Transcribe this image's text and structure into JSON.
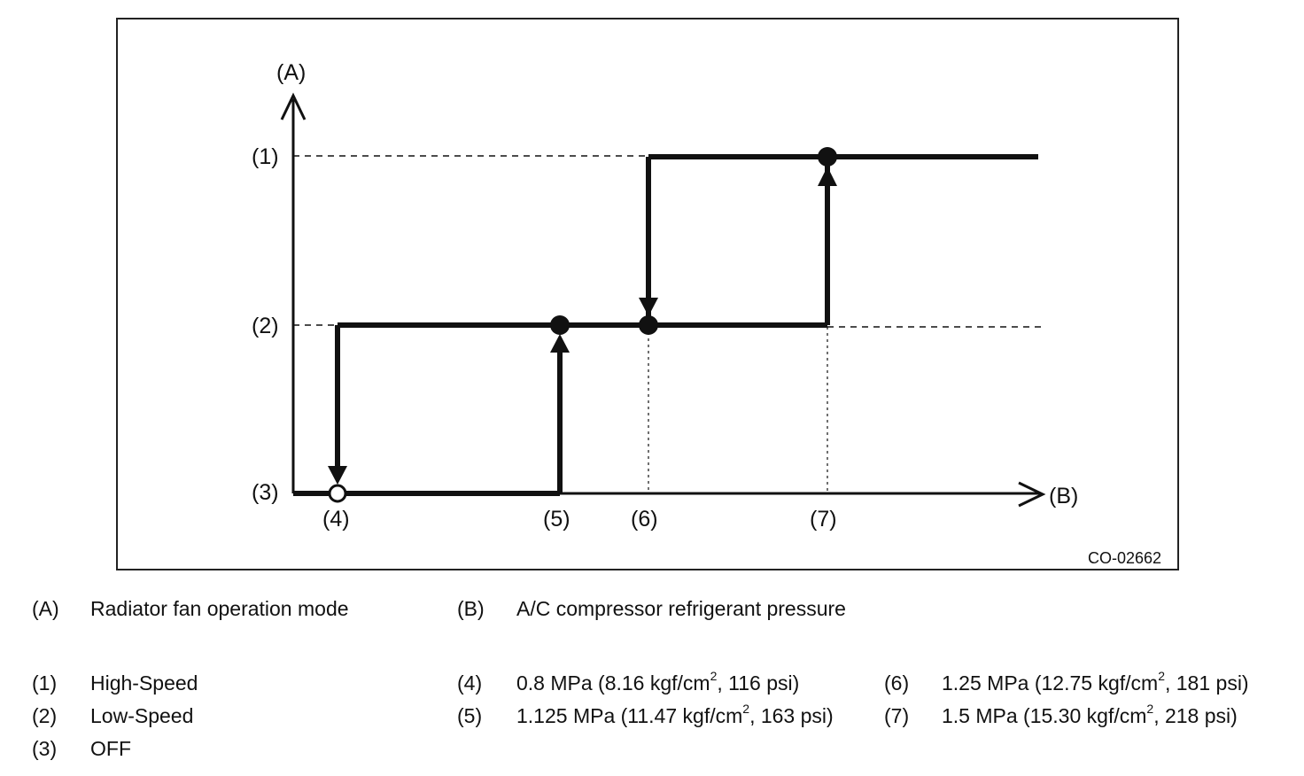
{
  "figure_code": "CO-02662",
  "axes": {
    "y_label": "(A)",
    "x_label": "(B)"
  },
  "y_levels": [
    {
      "key": "(1)",
      "name": "High-Speed"
    },
    {
      "key": "(2)",
      "name": "Low-Speed"
    },
    {
      "key": "(3)",
      "name": "OFF"
    }
  ],
  "x_points": [
    {
      "key": "(4)",
      "pre": "0.8 MPa (8.16 kgf/cm",
      "sup": "2",
      "post": ", 116 psi)"
    },
    {
      "key": "(5)",
      "pre": "1.125 MPa (11.47 kgf/cm",
      "sup": "2",
      "post": ", 163 psi)"
    },
    {
      "key": "(6)",
      "pre": "1.25 MPa (12.75 kgf/cm",
      "sup": "2",
      "post": ", 181 psi)"
    },
    {
      "key": "(7)",
      "pre": "1.5 MPa (15.30 kgf/cm",
      "sup": "2",
      "post": ", 218 psi)"
    }
  ],
  "legend": {
    "a_key": "(A)",
    "a_text": "Radiator fan operation mode",
    "b_key": "(B)",
    "b_text": "A/C compressor refrigerant pressure"
  }
}
